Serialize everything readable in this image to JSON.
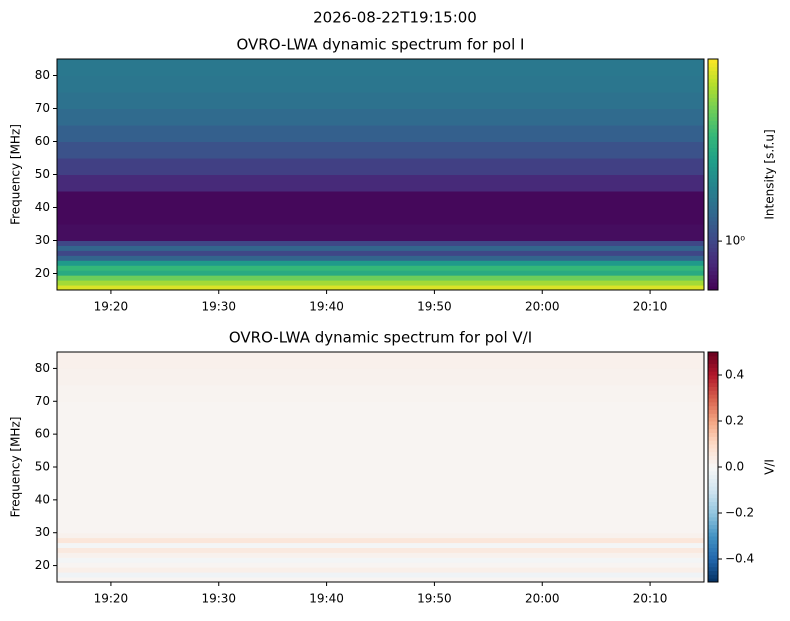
{
  "chart_data": [
    {
      "type": "heatmap",
      "suptitle": "2026-08-22T19:15:00",
      "title": "OVRO-LWA dynamic spectrum for pol I",
      "ylabel": "Frequency [MHz]",
      "colorbar_label": "Intensity [s.f.u]",
      "colormap": "viridis",
      "color_scale": "log",
      "xlim": [
        "19:15",
        "20:15"
      ],
      "xticks": [
        "19:20",
        "19:30",
        "19:40",
        "19:50",
        "20:00",
        "20:10"
      ],
      "ylim": [
        15,
        85
      ],
      "yticks": [
        20,
        30,
        40,
        50,
        60,
        70,
        80
      ],
      "ybins": [
        15,
        16.5,
        18,
        19.5,
        21,
        22.5,
        24,
        25.5,
        27,
        28.5,
        30,
        35,
        40,
        45,
        50,
        55,
        60,
        65,
        70,
        75,
        80,
        85
      ],
      "values": [
        5.9,
        4.8,
        3.9,
        2.6,
        3.0,
        2.2,
        1.3,
        1.0,
        1.3,
        1.0,
        0.65,
        0.63,
        0.63,
        0.8,
        0.95,
        1.1,
        1.25,
        1.38,
        1.48,
        1.55,
        1.58
      ],
      "clim": [
        0.6,
        6.7
      ],
      "cticks": [
        {
          "value": 1,
          "label": "10⁰"
        }
      ]
    },
    {
      "type": "heatmap",
      "title": "OVRO-LWA dynamic spectrum for pol V/I",
      "ylabel": "Frequency [MHz]",
      "colorbar_label": "V/I",
      "colormap": "RdBu_r",
      "color_scale": "linear",
      "xlim": [
        "19:15",
        "20:15"
      ],
      "xticks": [
        "19:20",
        "19:30",
        "19:40",
        "19:50",
        "20:00",
        "20:10"
      ],
      "ylim": [
        15,
        85
      ],
      "yticks": [
        20,
        30,
        40,
        50,
        60,
        70,
        80
      ],
      "ybins": [
        15,
        16.5,
        18,
        19.5,
        21,
        22.5,
        24,
        25.5,
        27,
        28.5,
        30,
        35,
        40,
        45,
        50,
        55,
        60,
        65,
        70,
        75,
        80,
        85
      ],
      "values": [
        0.01,
        -0.02,
        0.03,
        0.01,
        -0.01,
        0.02,
        0.05,
        -0.01,
        0.06,
        0.02,
        0.01,
        0.01,
        0.01,
        0.01,
        0.01,
        0.01,
        0.01,
        0.01,
        0.015,
        0.02,
        0.025
      ],
      "clim": [
        -0.5,
        0.5
      ],
      "cticks": [
        {
          "value": -0.4,
          "label": "−0.4"
        },
        {
          "value": -0.2,
          "label": "−0.2"
        },
        {
          "value": 0,
          "label": "0.0"
        },
        0.2,
        0.4
      ]
    }
  ]
}
